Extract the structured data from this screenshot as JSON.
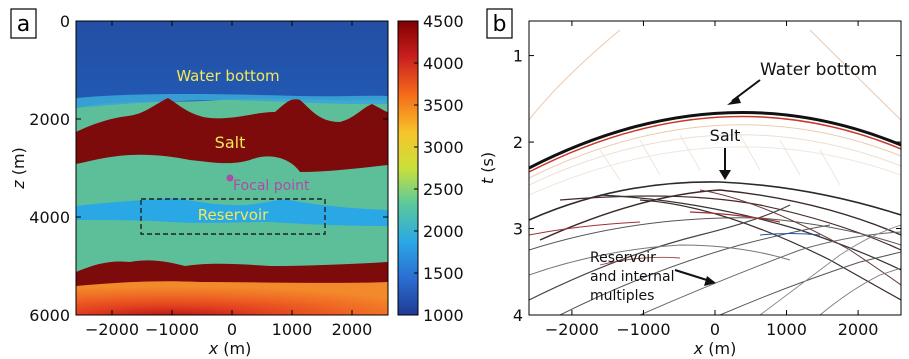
{
  "panel_a": {
    "label": "a",
    "xlabel_var": "x",
    "xlabel_unit": " (m)",
    "ylabel_var": "z",
    "ylabel_unit": " (m)",
    "xticks": [
      -2000,
      -1000,
      0,
      1000,
      2000
    ],
    "yticks": [
      0,
      2000,
      4000,
      6000
    ],
    "xlim": [
      -2600,
      2600
    ],
    "ylim": [
      0,
      6000
    ],
    "annotations": {
      "water_bottom": "Water bottom",
      "salt": "Salt",
      "focal_point": "Focal point",
      "reservoir": "Reservoir"
    },
    "colorbar": {
      "ticks": [
        4500,
        4000,
        3500,
        3000,
        2500,
        2000,
        1500,
        1000
      ],
      "range": [
        1000,
        4500
      ]
    },
    "colors": {
      "water": "#1e4fa6",
      "sediment": "#5dbf9a",
      "salt": "#7d0b0b",
      "reservoir": "#2aa8e6",
      "focal_point": "#b04aa8",
      "label_yellow": "#f2e85a"
    }
  },
  "panel_b": {
    "label": "b",
    "xlabel_var": "x",
    "xlabel_unit": " (m)",
    "ylabel_var": "t",
    "ylabel_unit": " (s)",
    "xticks": [
      -2000,
      -1000,
      0,
      1000,
      2000
    ],
    "yticks": [
      1,
      2,
      3,
      4
    ],
    "xlim": [
      -2600,
      2600
    ],
    "ylim": [
      0.6,
      4
    ],
    "annotations": {
      "water_bottom": "Water bottom",
      "salt": "Salt",
      "reservoir_line1": "Reservoir",
      "reservoir_line2": "and internal",
      "reservoir_line3": "multiples"
    }
  }
}
